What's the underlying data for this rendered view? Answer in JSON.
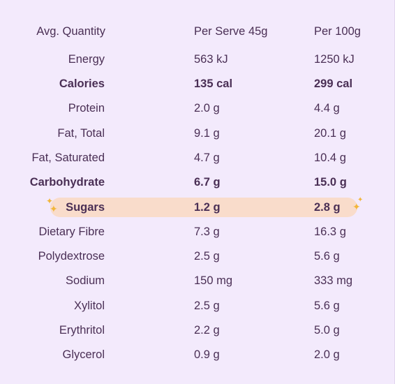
{
  "colors": {
    "background": "#f3eafc",
    "text": "#4a2f55",
    "highlight": "#f9dccb",
    "sparkle": "#f2b63a"
  },
  "table": {
    "header": {
      "name": "Avg. Quantity",
      "serve": "Per Serve 45g",
      "per100": "Per 100g"
    },
    "rows": [
      {
        "name": "Energy",
        "serve": "563 kJ",
        "per100": "1250 kJ",
        "bold": false
      },
      {
        "name": "Calories",
        "serve": "135 cal",
        "per100": "299 cal",
        "bold": true
      },
      {
        "name": "Protein",
        "serve": "2.0 g",
        "per100": "4.4 g",
        "bold": false
      },
      {
        "name": "Fat, Total",
        "serve": "9.1 g",
        "per100": "20.1 g",
        "bold": false
      },
      {
        "name": "Fat, Saturated",
        "serve": "4.7 g",
        "per100": "10.4 g",
        "bold": false
      },
      {
        "name": "Carbohydrate",
        "serve": "6.7 g",
        "per100": "15.0 g",
        "bold": true
      },
      {
        "name": "Sugars",
        "serve": "1.2 g",
        "per100": "2.8 g",
        "bold": true,
        "highlighted": true
      },
      {
        "name": "Dietary Fibre",
        "serve": "7.3 g",
        "per100": "16.3 g",
        "bold": false
      },
      {
        "name": "Polydextrose",
        "serve": "2.5 g",
        "per100": "5.6 g",
        "bold": false
      },
      {
        "name": "Sodium",
        "serve": "150 mg",
        "per100": "333 mg",
        "bold": false
      },
      {
        "name": "Xylitol",
        "serve": "2.5 g",
        "per100": "5.6 g",
        "bold": false
      },
      {
        "name": "Erythritol",
        "serve": "2.2 g",
        "per100": "5.0 g",
        "bold": false
      },
      {
        "name": "Glycerol",
        "serve": "0.9 g",
        "per100": "2.0 g",
        "bold": false
      }
    ]
  },
  "decor": {
    "left_sparkle_icon": "sparkle-icon",
    "right_sparkle_icon": "sparkle-icon"
  }
}
